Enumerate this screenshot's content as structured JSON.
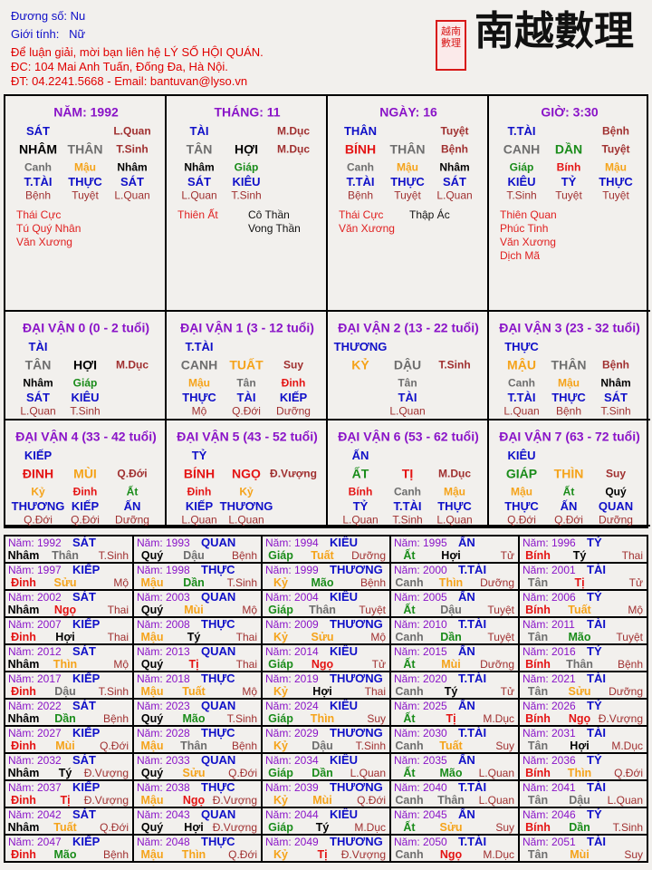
{
  "header": {
    "line1": "Đương số: Nu",
    "line2": "Giới tính:   Nữ",
    "contact1": "Để luận giải, mời bạn liên hệ LÝ SỐ HỘI QUÁN.",
    "contact2": "ĐC: 104 Mai Anh Tuấn, Đống Đa, Hà Nội.",
    "contact3": "ĐT: 04.2241.5668 - Email: bantuvan@lyso.vn"
  },
  "logo": {
    "text": "南越數理",
    "seal": "越南數理"
  },
  "colors": {
    "title": "#8a14c8",
    "god": "#1010c8",
    "stage": "#a03030",
    "star_red": "#e02020"
  },
  "stem_colors": {
    "nhâm": "#000000",
    "quý": "#000000",
    "hợi": "#000000",
    "tý": "#000000",
    "canh": "#6e6e6e",
    "tân": "#6e6e6e",
    "thân": "#6e6e6e",
    "dậu": "#6e6e6e",
    "giáp": "#1a8c1a",
    "ất": "#1a8c1a",
    "dần": "#1a8c1a",
    "mão": "#1a8c1a",
    "bính": "#e41414",
    "đinh": "#e41414",
    "tị": "#e41414",
    "ngọ": "#e41414",
    "mậu": "#f5a31a",
    "kỷ": "#f5a31a",
    "thìn": "#f5a31a",
    "tuất": "#f5a31a",
    "sửu": "#f5a31a",
    "mùi": "#f5a31a"
  },
  "pillars": [
    {
      "title": "NĂM: 1992",
      "god": "SÁT",
      "stage_top": "L.Quan",
      "stem": "NHÂM",
      "branch": "THÂN",
      "stage": "T.Sinh",
      "hidden": [
        [
          "Canh",
          "T.TÀI",
          "Bệnh"
        ],
        [
          "Mậu",
          "THỰC",
          "Tuyệt"
        ],
        [
          "Nhâm",
          "SÁT",
          "L.Quan"
        ]
      ],
      "stars_left": [
        "Thái Cực",
        "Tú Quý Nhân",
        "Văn Xương"
      ],
      "stars_right": []
    },
    {
      "title": "THÁNG: 11",
      "god": "TÀI",
      "stage_top": "M.Dục",
      "stem": "TÂN",
      "branch": "HỢI",
      "stage": "M.Dục",
      "hidden": [
        [
          "Nhâm",
          "SÁT",
          "L.Quan"
        ],
        [
          "Giáp",
          "KIÊU",
          "T.Sinh"
        ]
      ],
      "stars_left": [
        "Thiên Ất"
      ],
      "stars_right": [
        "Cô Thần",
        "Vong Thần"
      ]
    },
    {
      "title": "NGÀY: 16",
      "god": "THÂN",
      "stage_top": "Tuyệt",
      "stem": "BÍNH",
      "branch": "THÂN",
      "stage": "Bệnh",
      "hidden": [
        [
          "Canh",
          "T.TÀI",
          "Bệnh"
        ],
        [
          "Mậu",
          "THỰC",
          "Tuyệt"
        ],
        [
          "Nhâm",
          "SÁT",
          "L.Quan"
        ]
      ],
      "stars_left": [
        "Thái Cực",
        "Văn Xương"
      ],
      "stars_right": [
        "Thập Ác"
      ]
    },
    {
      "title": "GIỜ: 3:30",
      "god": "T.TÀI",
      "stage_top": "Bệnh",
      "stem": "CANH",
      "branch": "DẦN",
      "stage": "Tuyệt",
      "hidden": [
        [
          "Giáp",
          "KIÊU",
          "T.Sinh"
        ],
        [
          "Bính",
          "TỶ",
          "Tuyệt"
        ],
        [
          "Mậu",
          "THỰC",
          "Tuyệt"
        ]
      ],
      "stars_left": [
        "Thiên Quan",
        "Phúc Tinh",
        "Văn Xương",
        "Dịch Mã"
      ],
      "stars_right": []
    }
  ],
  "dai_van": [
    {
      "title": "ĐẠI VẬN 0 (0 - 2 tuổi)",
      "god": "TÀI",
      "stem": "TÂN",
      "branch": "HỢI",
      "stage": "M.Dục",
      "hidden": [
        [
          "Nhâm",
          "SÁT",
          "L.Quan"
        ],
        [
          "Giáp",
          "KIÊU",
          "T.Sinh"
        ]
      ]
    },
    {
      "title": "ĐẠI VẬN 1 (3 - 12 tuổi)",
      "god": "T.TÀI",
      "stem": "CANH",
      "branch": "TUẤT",
      "stage": "Suy",
      "hidden": [
        [
          "Mậu",
          "THỰC",
          "Mộ"
        ],
        [
          "Tân",
          "TÀI",
          "Q.Đới"
        ],
        [
          "Đinh",
          "KIẾP",
          "Dưỡng"
        ]
      ]
    },
    {
      "title": "ĐẠI VẬN 2 (13 - 22 tuổi)",
      "god": "THƯƠNG",
      "stem": "KỶ",
      "branch": "DẬU",
      "stage": "T.Sinh",
      "hidden": [
        null,
        [
          "Tân",
          "TÀI",
          "L.Quan"
        ]
      ]
    },
    {
      "title": "ĐẠI VẬN 3 (23 - 32 tuổi)",
      "god": "THỰC",
      "stem": "MẬU",
      "branch": "THÂN",
      "stage": "Bệnh",
      "hidden": [
        [
          "Canh",
          "T.TÀI",
          "L.Quan"
        ],
        [
          "Mậu",
          "THỰC",
          "Bệnh"
        ],
        [
          "Nhâm",
          "SÁT",
          "T.Sinh"
        ]
      ]
    },
    {
      "title": "ĐẠI VẬN 4 (33 - 42 tuổi)",
      "god": "KIẾP",
      "stem": "ĐINH",
      "branch": "MÙI",
      "stage": "Q.Đới",
      "hidden": [
        [
          "Kỷ",
          "THƯƠNG",
          "Q.Đới"
        ],
        [
          "Đinh",
          "KIẾP",
          "Q.Đới"
        ],
        [
          "Ất",
          "ẤN",
          "Dưỡng"
        ]
      ]
    },
    {
      "title": "ĐẠI VẬN 5 (43 - 52 tuổi)",
      "god": "TỶ",
      "stem": "BÍNH",
      "branch": "NGỌ",
      "stage": "Đ.Vượng",
      "hidden": [
        [
          "Đinh",
          "KIẾP",
          "L.Quan"
        ],
        [
          "Kỷ",
          "THƯƠNG",
          "L.Quan"
        ]
      ]
    },
    {
      "title": "ĐẠI VẬN 6 (53 - 62 tuổi)",
      "god": "ẤN",
      "stem": "ẤT",
      "branch": "TỊ",
      "stage": "M.Dục",
      "hidden": [
        [
          "Bính",
          "TỶ",
          "L.Quan"
        ],
        [
          "Canh",
          "T.TÀI",
          "T.Sinh"
        ],
        [
          "Mậu",
          "THỰC",
          "L.Quan"
        ]
      ]
    },
    {
      "title": "ĐẠI VẬN 7 (63 - 72 tuổi)",
      "god": "KIÊU",
      "stem": "GIÁP",
      "branch": "THÌN",
      "stage": "Suy",
      "hidden": [
        [
          "Mậu",
          "THỰC",
          "Q.Đới"
        ],
        [
          "Ất",
          "ẤN",
          "Q.Đới"
        ],
        [
          "Quý",
          "QUAN",
          "Dưỡng"
        ]
      ]
    }
  ],
  "years": [
    [
      "Năm: 1992",
      "SÁT",
      "Nhâm",
      "Thân",
      "T.Sinh"
    ],
    [
      "Năm: 1993",
      "QUAN",
      "Quý",
      "Dậu",
      "Bệnh"
    ],
    [
      "Năm: 1994",
      "KIÊU",
      "Giáp",
      "Tuất",
      "Dưỡng"
    ],
    [
      "Năm: 1995",
      "ẤN",
      "Ất",
      "Hợi",
      "Tử"
    ],
    [
      "Năm: 1996",
      "TỶ",
      "Bính",
      "Tý",
      "Thai"
    ],
    [
      "Năm: 1997",
      "KIẾP",
      "Đinh",
      "Sửu",
      "Mộ"
    ],
    [
      "Năm: 1998",
      "THỰC",
      "Mậu",
      "Dần",
      "T.Sinh"
    ],
    [
      "Năm: 1999",
      "THƯƠNG",
      "Kỷ",
      "Mão",
      "Bệnh"
    ],
    [
      "Năm: 2000",
      "T.TÀI",
      "Canh",
      "Thìn",
      "Dưỡng"
    ],
    [
      "Năm: 2001",
      "TÀI",
      "Tân",
      "Tị",
      "Tử"
    ],
    [
      "Năm: 2002",
      "SÁT",
      "Nhâm",
      "Ngọ",
      "Thai"
    ],
    [
      "Năm: 2003",
      "QUAN",
      "Quý",
      "Mùi",
      "Mộ"
    ],
    [
      "Năm: 2004",
      "KIÊU",
      "Giáp",
      "Thân",
      "Tuyệt"
    ],
    [
      "Năm: 2005",
      "ẤN",
      "Ất",
      "Dậu",
      "Tuyệt"
    ],
    [
      "Năm: 2006",
      "TỶ",
      "Bính",
      "Tuất",
      "Mộ"
    ],
    [
      "Năm: 2007",
      "KIẾP",
      "Đinh",
      "Hợi",
      "Thai"
    ],
    [
      "Năm: 2008",
      "THỰC",
      "Mậu",
      "Tý",
      "Thai"
    ],
    [
      "Năm: 2009",
      "THƯƠNG",
      "Kỷ",
      "Sửu",
      "Mộ"
    ],
    [
      "Năm: 2010",
      "T.TÀI",
      "Canh",
      "Dần",
      "Tuyệt"
    ],
    [
      "Năm: 2011",
      "TÀI",
      "Tân",
      "Mão",
      "Tuyệt"
    ],
    [
      "Năm: 2012",
      "SÁT",
      "Nhâm",
      "Thìn",
      "Mộ"
    ],
    [
      "Năm: 2013",
      "QUAN",
      "Quý",
      "Tị",
      "Thai"
    ],
    [
      "Năm: 2014",
      "KIÊU",
      "Giáp",
      "Ngọ",
      "Tử"
    ],
    [
      "Năm: 2015",
      "ẤN",
      "Ất",
      "Mùi",
      "Dưỡng"
    ],
    [
      "Năm: 2016",
      "TỶ",
      "Bính",
      "Thân",
      "Bệnh"
    ],
    [
      "Năm: 2017",
      "KIẾP",
      "Đinh",
      "Dậu",
      "T.Sinh"
    ],
    [
      "Năm: 2018",
      "THỰC",
      "Mậu",
      "Tuất",
      "Mộ"
    ],
    [
      "Năm: 2019",
      "THƯƠNG",
      "Kỷ",
      "Hợi",
      "Thai"
    ],
    [
      "Năm: 2020",
      "T.TÀI",
      "Canh",
      "Tý",
      "Tử"
    ],
    [
      "Năm: 2021",
      "TÀI",
      "Tân",
      "Sửu",
      "Dưỡng"
    ],
    [
      "Năm: 2022",
      "SÁT",
      "Nhâm",
      "Dần",
      "Bệnh"
    ],
    [
      "Năm: 2023",
      "QUAN",
      "Quý",
      "Mão",
      "T.Sinh"
    ],
    [
      "Năm: 2024",
      "KIÊU",
      "Giáp",
      "Thìn",
      "Suy"
    ],
    [
      "Năm: 2025",
      "ẤN",
      "Ất",
      "Tị",
      "M.Dục"
    ],
    [
      "Năm: 2026",
      "TỶ",
      "Bính",
      "Ngọ",
      "Đ.Vượng"
    ],
    [
      "Năm: 2027",
      "KIẾP",
      "Đinh",
      "Mùi",
      "Q.Đới"
    ],
    [
      "Năm: 2028",
      "THỰC",
      "Mậu",
      "Thân",
      "Bệnh"
    ],
    [
      "Năm: 2029",
      "THƯƠNG",
      "Kỷ",
      "Dậu",
      "T.Sinh"
    ],
    [
      "Năm: 2030",
      "T.TÀI",
      "Canh",
      "Tuất",
      "Suy"
    ],
    [
      "Năm: 2031",
      "TÀI",
      "Tân",
      "Hợi",
      "M.Dục"
    ],
    [
      "Năm: 2032",
      "SÁT",
      "Nhâm",
      "Tý",
      "Đ.Vượng"
    ],
    [
      "Năm: 2033",
      "QUAN",
      "Quý",
      "Sửu",
      "Q.Đới"
    ],
    [
      "Năm: 2034",
      "KIÊU",
      "Giáp",
      "Dần",
      "L.Quan"
    ],
    [
      "Năm: 2035",
      "ẤN",
      "Ất",
      "Mão",
      "L.Quan"
    ],
    [
      "Năm: 2036",
      "TỶ",
      "Bính",
      "Thìn",
      "Q.Đới"
    ],
    [
      "Năm: 2037",
      "KIẾP",
      "Đinh",
      "Tị",
      "Đ.Vượng"
    ],
    [
      "Năm: 2038",
      "THỰC",
      "Mậu",
      "Ngọ",
      "Đ.Vượng"
    ],
    [
      "Năm: 2039",
      "THƯƠNG",
      "Kỷ",
      "Mùi",
      "Q.Đới"
    ],
    [
      "Năm: 2040",
      "T.TÀI",
      "Canh",
      "Thân",
      "L.Quan"
    ],
    [
      "Năm: 2041",
      "TÀI",
      "Tân",
      "Dậu",
      "L.Quan"
    ],
    [
      "Năm: 2042",
      "SÁT",
      "Nhâm",
      "Tuất",
      "Q.Đới"
    ],
    [
      "Năm: 2043",
      "QUAN",
      "Quý",
      "Hợi",
      "Đ.Vượng"
    ],
    [
      "Năm: 2044",
      "KIÊU",
      "Giáp",
      "Tý",
      "M.Dục"
    ],
    [
      "Năm: 2045",
      "ẤN",
      "Ất",
      "Sửu",
      "Suy"
    ],
    [
      "Năm: 2046",
      "TỶ",
      "Bính",
      "Dần",
      "T.Sinh"
    ],
    [
      "Năm: 2047",
      "KIẾP",
      "Đinh",
      "Mão",
      "Bệnh"
    ],
    [
      "Năm: 2048",
      "THỰC",
      "Mậu",
      "Thìn",
      "Q.Đới"
    ],
    [
      "Năm: 2049",
      "THƯƠNG",
      "Kỷ",
      "Tị",
      "Đ.Vượng"
    ],
    [
      "Năm: 2050",
      "T.TÀI",
      "Canh",
      "Ngọ",
      "M.Dục"
    ],
    [
      "Năm: 2051",
      "TÀI",
      "Tân",
      "Mùi",
      "Suy"
    ]
  ]
}
